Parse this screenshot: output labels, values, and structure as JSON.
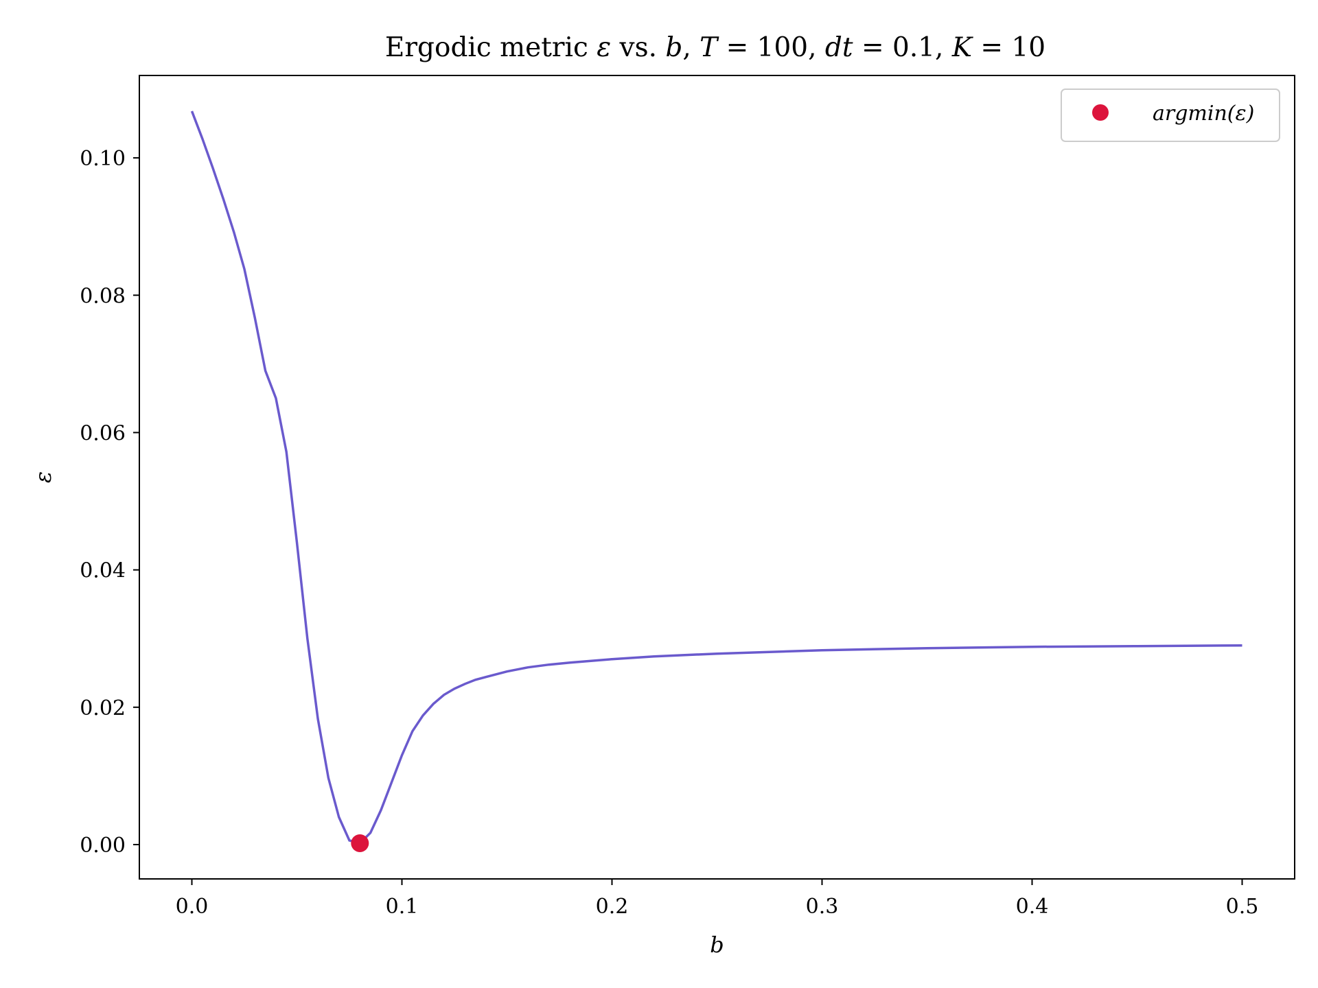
{
  "chart_data": {
    "type": "line",
    "title": {
      "prefix": "Ergodic metric ",
      "eps": "ε",
      "mid1": " vs. ",
      "b": "b",
      "mid2": ", ",
      "T": "T",
      "eqT": " =  100, ",
      "dt": "dt",
      "eqdt": " =  0.1, ",
      "K": "K",
      "eqK": " =  10"
    },
    "xlabel": "b",
    "ylabel": "ε",
    "xlim": [
      -0.025,
      0.525
    ],
    "ylim": [
      -0.005,
      0.112
    ],
    "xticks": [
      0.0,
      0.1,
      0.2,
      0.3,
      0.4,
      0.5
    ],
    "xtick_labels": [
      "0.0",
      "0.1",
      "0.2",
      "0.3",
      "0.4",
      "0.5"
    ],
    "yticks": [
      0.0,
      0.02,
      0.04,
      0.06,
      0.08,
      0.1
    ],
    "ytick_labels": [
      "0.00",
      "0.02",
      "0.04",
      "0.06",
      "0.08",
      "0.10"
    ],
    "grid": false,
    "legend_position": "top-right",
    "series": [
      {
        "color": "#6a5acd",
        "x": [
          0.0,
          0.005,
          0.01,
          0.015,
          0.02,
          0.025,
          0.03,
          0.035,
          0.04,
          0.045,
          0.05,
          0.055,
          0.06,
          0.065,
          0.07,
          0.075,
          0.08,
          0.085,
          0.09,
          0.095,
          0.1,
          0.105,
          0.11,
          0.115,
          0.12,
          0.125,
          0.13,
          0.135,
          0.14,
          0.15,
          0.16,
          0.17,
          0.18,
          0.2,
          0.22,
          0.25,
          0.3,
          0.35,
          0.4,
          0.45,
          0.5
        ],
        "y": [
          0.1068,
          0.1028,
          0.0985,
          0.094,
          0.0892,
          0.0838,
          0.0767,
          0.069,
          0.065,
          0.0572,
          0.044,
          0.03,
          0.0183,
          0.0097,
          0.004,
          0.0006,
          0.0002,
          0.0017,
          0.005,
          0.009,
          0.013,
          0.0165,
          0.0188,
          0.0205,
          0.0218,
          0.0227,
          0.0234,
          0.024,
          0.0244,
          0.0252,
          0.0258,
          0.0262,
          0.0265,
          0.027,
          0.0274,
          0.0278,
          0.0283,
          0.0286,
          0.0288,
          0.0289,
          0.029
        ]
      }
    ],
    "markers": [
      {
        "label": "argmin(ε)",
        "x": 0.08,
        "y": 0.0002,
        "color": "#dc143c"
      }
    ]
  }
}
